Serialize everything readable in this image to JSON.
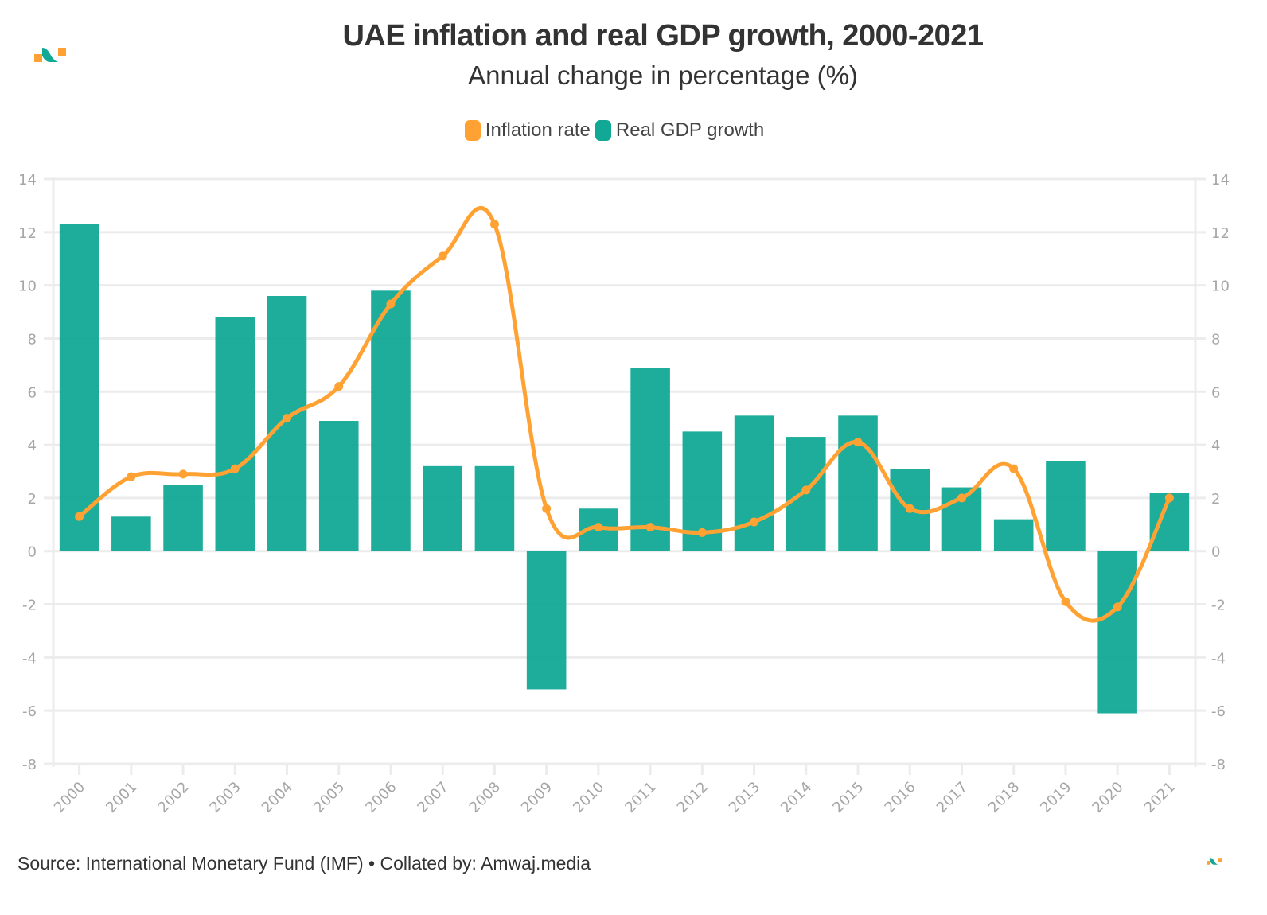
{
  "header": {
    "title": "UAE inflation and real GDP growth, 2000-2021",
    "subtitle": "Annual change in percentage (%)"
  },
  "legend": {
    "items": [
      {
        "label": "Inflation rate",
        "color": "#FFA233"
      },
      {
        "label": "Real GDP growth",
        "color": "#12A896"
      }
    ]
  },
  "footer": {
    "source": "Source: International Monetary Fund (IMF) • Collated by: Amwaj.media"
  },
  "brand": {
    "logo_icon": "amwaj-logo-icon",
    "colors": {
      "orange": "#FFA233",
      "teal": "#12A896"
    }
  },
  "chart_data": {
    "type": "bar",
    "title": "UAE inflation and real GDP growth, 2000-2021",
    "subtitle": "Annual change in percentage (%)",
    "xlabel": "",
    "ylabel": "",
    "categories": [
      "2000",
      "2001",
      "2002",
      "2003",
      "2004",
      "2005",
      "2006",
      "2007",
      "2008",
      "2009",
      "2010",
      "2011",
      "2012",
      "2013",
      "2014",
      "2015",
      "2016",
      "2017",
      "2018",
      "2019",
      "2020",
      "2021"
    ],
    "series": [
      {
        "name": "Real GDP growth",
        "type": "bar",
        "color": "#12A896",
        "values": [
          12.3,
          1.3,
          2.5,
          8.8,
          9.6,
          4.9,
          9.8,
          3.2,
          3.2,
          -5.2,
          1.6,
          6.9,
          4.5,
          5.1,
          4.3,
          5.1,
          3.1,
          2.4,
          1.2,
          3.4,
          -6.1,
          2.2
        ]
      },
      {
        "name": "Inflation rate",
        "type": "line",
        "smooth": true,
        "color": "#FFA233",
        "values": [
          1.3,
          2.8,
          2.9,
          3.1,
          5.0,
          6.2,
          9.3,
          11.1,
          12.3,
          1.6,
          0.9,
          0.9,
          0.7,
          1.1,
          2.3,
          4.1,
          1.6,
          2.0,
          3.1,
          -1.9,
          -2.1,
          2.0
        ]
      }
    ],
    "ylim": [
      -8,
      14
    ],
    "yticks": [
      14,
      12,
      10,
      8,
      6,
      4,
      2,
      0,
      -2,
      -4,
      -6,
      -8
    ],
    "y_axes": [
      "left",
      "right"
    ],
    "grid": true,
    "legend_position": "top-center"
  }
}
